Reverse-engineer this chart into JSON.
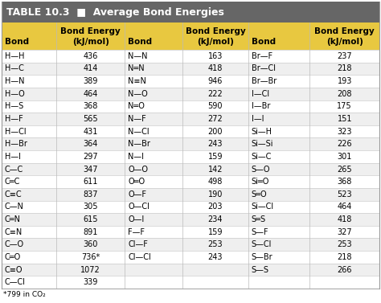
{
  "title": "TABLE 10.3  ■  Average Bond Energies",
  "title_bg": "#666666",
  "title_color": "#ffffff",
  "header_bg": "#e8c840",
  "row_bg_odd": "#ffffff",
  "row_bg_even": "#efefef",
  "col1_data": [
    [
      "H—H",
      "436"
    ],
    [
      "H—C",
      "414"
    ],
    [
      "H—N",
      "389"
    ],
    [
      "H—O",
      "464"
    ],
    [
      "H—S",
      "368"
    ],
    [
      "H—F",
      "565"
    ],
    [
      "H—Cl",
      "431"
    ],
    [
      "H—Br",
      "364"
    ],
    [
      "H—I",
      "297"
    ],
    [
      "C—C",
      "347"
    ],
    [
      "C═C",
      "611"
    ],
    [
      "C≡C",
      "837"
    ],
    [
      "C—N",
      "305"
    ],
    [
      "C═N",
      "615"
    ],
    [
      "C≡N",
      "891"
    ],
    [
      "C—O",
      "360"
    ],
    [
      "C═O",
      "736*"
    ],
    [
      "C≡O",
      "1072"
    ],
    [
      "C—Cl",
      "339"
    ]
  ],
  "col2_data": [
    [
      "N—N",
      "163"
    ],
    [
      "N═N",
      "418"
    ],
    [
      "N≡N",
      "946"
    ],
    [
      "N—O",
      "222"
    ],
    [
      "N═O",
      "590"
    ],
    [
      "N—F",
      "272"
    ],
    [
      "N—Cl",
      "200"
    ],
    [
      "N—Br",
      "243"
    ],
    [
      "N—I",
      "159"
    ],
    [
      "O—O",
      "142"
    ],
    [
      "O═O",
      "498"
    ],
    [
      "O—F",
      "190"
    ],
    [
      "O—Cl",
      "203"
    ],
    [
      "O—I",
      "234"
    ],
    [
      "F—F",
      "159"
    ],
    [
      "Cl—F",
      "253"
    ],
    [
      "Cl—Cl",
      "243"
    ],
    [
      "",
      ""
    ],
    [
      "",
      ""
    ]
  ],
  "col3_data": [
    [
      "Br—F",
      "237"
    ],
    [
      "Br—Cl",
      "218"
    ],
    [
      "Br—Br",
      "193"
    ],
    [
      "I—Cl",
      "208"
    ],
    [
      "I—Br",
      "175"
    ],
    [
      "I—I",
      "151"
    ],
    [
      "Si—H",
      "323"
    ],
    [
      "Si—Si",
      "226"
    ],
    [
      "Si—C",
      "301"
    ],
    [
      "S—O",
      "265"
    ],
    [
      "Si═O",
      "368"
    ],
    [
      "S═O",
      "523"
    ],
    [
      "Si—Cl",
      "464"
    ],
    [
      "S═S",
      "418"
    ],
    [
      "S—F",
      "327"
    ],
    [
      "S—Cl",
      "253"
    ],
    [
      "S—Br",
      "218"
    ],
    [
      "S—S",
      "266"
    ],
    [
      "",
      ""
    ]
  ],
  "footnote": "*799 in CO₂",
  "bg_color": "#ffffff",
  "font_size": 7.0,
  "title_font_size": 9.0,
  "header_font_size": 7.5
}
